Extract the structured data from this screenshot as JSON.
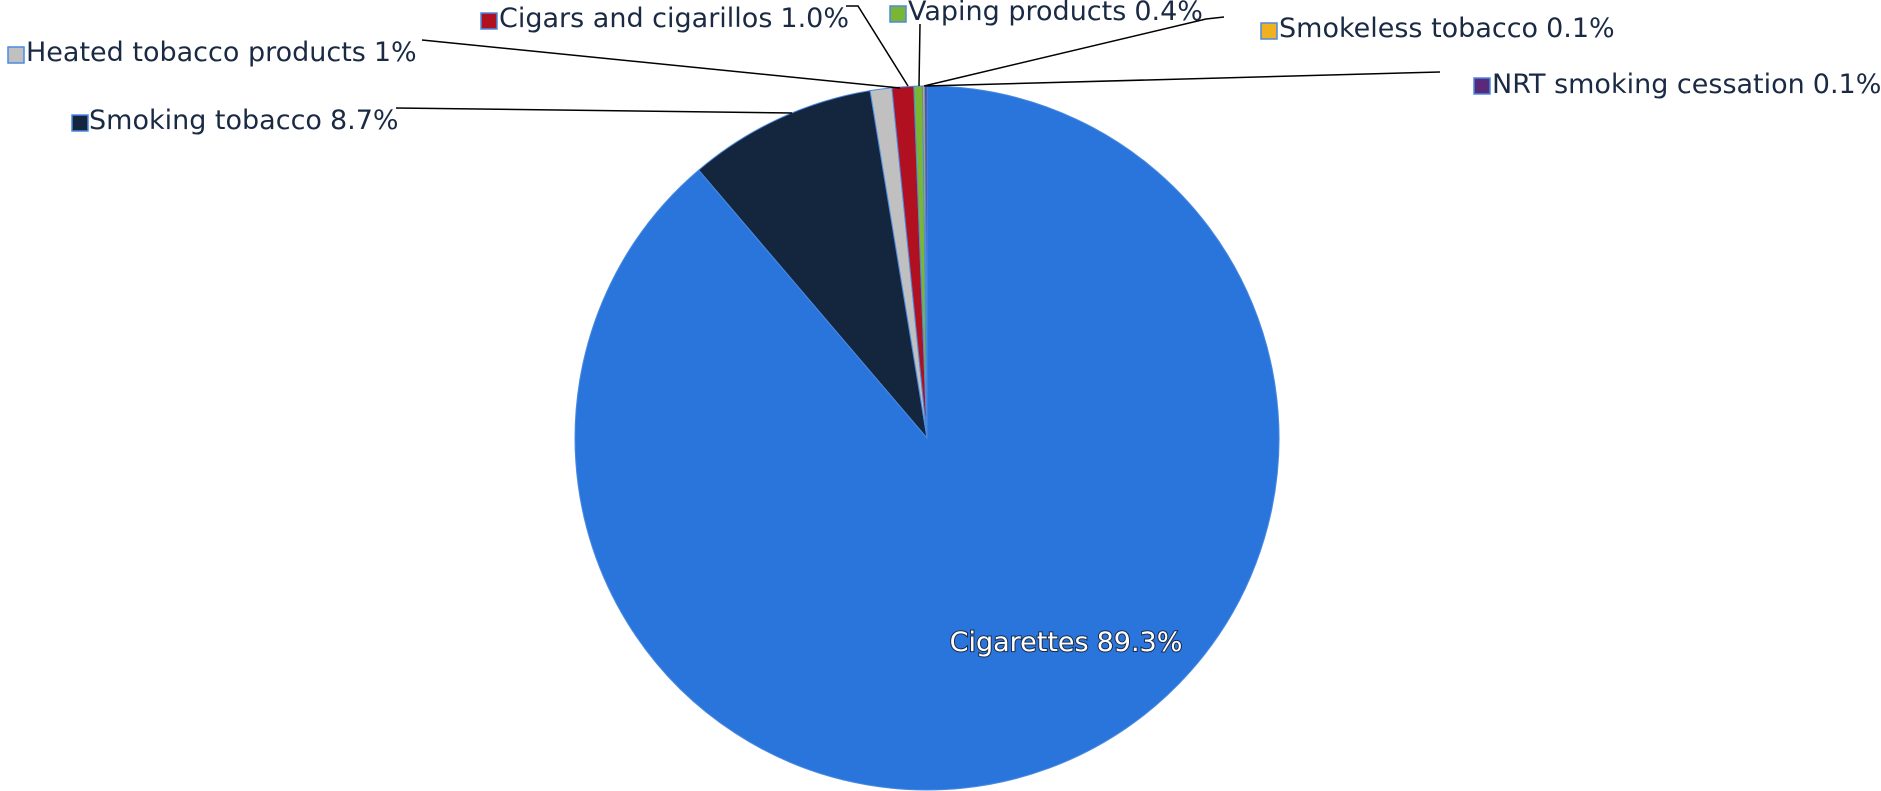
{
  "chart_data": {
    "type": "pie",
    "categories": [
      "Cigarettes",
      "Smoking tobacco",
      "Heated tobacco products",
      "Cigars and cigarillos",
      "Vaping products",
      "Smokeless tobacco",
      "NRT smoking cessation"
    ],
    "values": [
      89.3,
      8.7,
      1,
      1.0,
      0.4,
      0.1,
      0.1
    ],
    "value_labels": [
      "89.3%",
      "8.7%",
      "1%",
      "1.0%",
      "0.4%",
      "0.1%",
      "0.1%"
    ],
    "colors": [
      "#2a75dc",
      "#13263e",
      "#c0c0c0",
      "#b01020",
      "#7ab636",
      "#f0b020",
      "#5a2a7a"
    ]
  }
}
